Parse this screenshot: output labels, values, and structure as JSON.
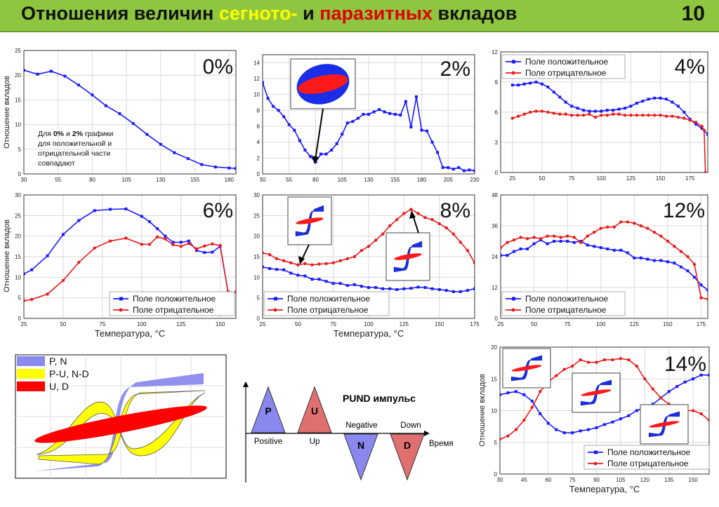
{
  "header": {
    "title_part1": "Отношения величин ",
    "title_part2": "сегното-",
    "title_part3": " и ",
    "title_part4": "паразитных",
    "title_part5": " вкладов",
    "page_number": "10",
    "colors": {
      "background": "#8ec63f",
      "accent1": "#ffff00",
      "accent2": "#e00000"
    }
  },
  "common": {
    "ylabel": "Отношение вкладов",
    "xlabel": "Температура, °C",
    "legend_pos": "Поле положительное",
    "legend_neg": "Поле отрицательное",
    "color_pos": "#1a1aff",
    "color_neg": "#e81c1c"
  },
  "note": {
    "lines": [
      [
        {
          "t": "Для "
        },
        {
          "t": "0%",
          "b": true
        },
        {
          "t": " и "
        },
        {
          "t": "2%",
          "b": true
        },
        {
          "t": " графики"
        }
      ],
      [
        {
          "t": "для положительной и"
        }
      ],
      [
        {
          "t": "отрицательной части"
        }
      ],
      [
        {
          "t": "совпадают"
        }
      ]
    ]
  },
  "chart_data": [
    {
      "type": "line",
      "title": "0%",
      "xlim": [
        30,
        185
      ],
      "ylim": [
        0,
        25
      ],
      "xticks": [
        30,
        55,
        80,
        105,
        130,
        155,
        180
      ],
      "yticks": [
        0,
        5,
        10,
        15,
        20,
        25
      ],
      "ylabel": "Отношение вкладов",
      "xlabel": "",
      "legend": false,
      "series": [
        {
          "name": "Поле положительное",
          "color": "pos",
          "x": [
            30,
            40,
            50,
            60,
            70,
            80,
            90,
            100,
            110,
            120,
            130,
            140,
            150,
            160,
            170,
            180,
            185
          ],
          "y": [
            21,
            20.2,
            20.8,
            19.8,
            18,
            16,
            13.8,
            12.2,
            10.2,
            8,
            6,
            4.3,
            3.1,
            1.9,
            1.4,
            1.2,
            1.1
          ]
        }
      ]
    },
    {
      "type": "line",
      "title": "2%",
      "xlim": [
        30,
        230
      ],
      "ylim": [
        0,
        15
      ],
      "xticks": [
        30,
        55,
        80,
        105,
        130,
        155,
        180,
        205,
        230
      ],
      "yticks": [
        0,
        2,
        4,
        6,
        8,
        10,
        12,
        14
      ],
      "ylabel": "",
      "xlabel": "",
      "legend": false,
      "series": [
        {
          "name": "Поле положительное",
          "color": "pos",
          "x": [
            30,
            35,
            40,
            45,
            50,
            55,
            60,
            65,
            70,
            75,
            80,
            85,
            90,
            95,
            100,
            105,
            110,
            115,
            120,
            125,
            130,
            135,
            140,
            145,
            150,
            155,
            160,
            165,
            170,
            175,
            180,
            185,
            190,
            195,
            200,
            205,
            210,
            215,
            220,
            225,
            230
          ],
          "y": [
            11.5,
            9.5,
            8.5,
            8,
            7.2,
            6.2,
            5.5,
            4.2,
            3,
            2.2,
            1.5,
            2.5,
            2.5,
            3,
            3.8,
            5,
            6.4,
            6.6,
            7,
            7.5,
            7.5,
            7.8,
            8.1,
            7.8,
            7.6,
            7.5,
            7.4,
            9.1,
            5.9,
            9.7,
            5.5,
            5.4,
            4,
            2.7,
            0.8,
            0.8,
            0.6,
            0.8,
            0.4,
            0.5,
            0.4
          ]
        }
      ]
    },
    {
      "type": "line",
      "title": "4%",
      "xlim": [
        15,
        190
      ],
      "ylim": [
        0,
        12
      ],
      "xticks": [
        25,
        50,
        75,
        100,
        125,
        150,
        175
      ],
      "yticks": [
        0,
        3,
        6,
        9,
        12
      ],
      "ylabel": "",
      "xlabel": "",
      "legend": true,
      "series": [
        {
          "name": "Поле положительное",
          "color": "pos",
          "x": [
            25,
            30,
            35,
            40,
            45,
            50,
            55,
            60,
            65,
            70,
            75,
            80,
            85,
            90,
            95,
            100,
            105,
            110,
            115,
            120,
            125,
            130,
            135,
            140,
            145,
            150,
            155,
            160,
            165,
            170,
            175,
            180,
            185,
            190
          ],
          "y": [
            8.7,
            8.7,
            8.8,
            8.9,
            9,
            8.8,
            8.5,
            8,
            7.5,
            7,
            6.6,
            6.4,
            6.2,
            6.1,
            6.1,
            6.1,
            6.2,
            6.2,
            6.3,
            6.4,
            6.6,
            6.9,
            7.1,
            7.3,
            7.4,
            7.4,
            7.3,
            7,
            6.6,
            6,
            5.3,
            4.8,
            4.4,
            3.8
          ]
        },
        {
          "name": "Поле отрицательное",
          "color": "neg",
          "x": [
            25,
            30,
            35,
            40,
            45,
            50,
            55,
            60,
            65,
            70,
            75,
            80,
            85,
            90,
            95,
            100,
            105,
            110,
            115,
            120,
            125,
            130,
            135,
            140,
            145,
            150,
            155,
            160,
            165,
            170,
            175,
            180,
            185,
            187,
            188
          ],
          "y": [
            5.4,
            5.6,
            5.8,
            6,
            6.1,
            6.1,
            6,
            5.9,
            5.8,
            5.8,
            5.7,
            5.7,
            5.7,
            5.8,
            5.5,
            5.7,
            5.7,
            5.8,
            5.8,
            5.7,
            5.7,
            5.7,
            5.7,
            5.7,
            5.7,
            5.7,
            5.6,
            5.6,
            5.5,
            5.4,
            5.2,
            5,
            4.6,
            4.2,
            0
          ]
        }
      ]
    },
    {
      "type": "line",
      "title": "6%",
      "xlim": [
        25,
        160
      ],
      "ylim": [
        0,
        30
      ],
      "xticks": [
        25,
        50,
        75,
        100,
        125,
        150
      ],
      "yticks": [
        0,
        5,
        10,
        15,
        20,
        25,
        30
      ],
      "ylabel": "Отношение вкладов",
      "xlabel": "Температура, °C",
      "legend": true,
      "series": [
        {
          "name": "Поле положительное",
          "color": "pos",
          "x": [
            25,
            30,
            40,
            50,
            60,
            70,
            80,
            90,
            100,
            105,
            110,
            115,
            120,
            125,
            130,
            135,
            140,
            145,
            150,
            155,
            160
          ],
          "y": [
            10.8,
            11.8,
            15.2,
            20.4,
            23.8,
            26.2,
            26.5,
            26.6,
            24.8,
            23.5,
            21.8,
            20,
            18.5,
            18.5,
            18.8,
            16.5,
            16,
            16.1,
            17.5,
            6.4,
            6.4
          ]
        },
        {
          "name": "Поле отрицательное",
          "color": "neg",
          "x": [
            25,
            30,
            40,
            50,
            60,
            70,
            80,
            90,
            100,
            105,
            110,
            115,
            120,
            125,
            130,
            135,
            140,
            145,
            150,
            155,
            160
          ],
          "y": [
            4.3,
            4.6,
            5.9,
            9.2,
            13.6,
            17.1,
            18.8,
            19.5,
            18,
            18,
            19.8,
            19.3,
            17.9,
            17.5,
            18.2,
            16.9,
            17.6,
            18.1,
            17.7,
            6.5,
            6.4
          ]
        }
      ]
    },
    {
      "type": "line",
      "title": "8%",
      "xlim": [
        25,
        175
      ],
      "ylim": [
        0,
        30
      ],
      "xticks": [
        25,
        50,
        75,
        100,
        125,
        150,
        175
      ],
      "yticks": [
        0,
        5,
        10,
        15,
        20,
        25,
        30
      ],
      "ylabel": "",
      "xlabel": "Температура, °C",
      "legend": true,
      "series": [
        {
          "name": "Поле положительное",
          "color": "pos",
          "x": [
            25,
            30,
            35,
            40,
            45,
            50,
            55,
            60,
            65,
            70,
            75,
            80,
            85,
            90,
            95,
            100,
            105,
            110,
            115,
            120,
            125,
            130,
            135,
            140,
            145,
            150,
            155,
            160,
            165,
            170,
            175
          ],
          "y": [
            12.5,
            12.1,
            11.9,
            11.8,
            11,
            10.5,
            10.3,
            9.5,
            9.5,
            9,
            8.5,
            8.5,
            8,
            8.2,
            7.8,
            7.5,
            7.5,
            7.2,
            7.2,
            7,
            7.2,
            7.3,
            7.6,
            7.5,
            7.2,
            7,
            6.8,
            6.5,
            6.5,
            6.8,
            7.2
          ]
        },
        {
          "name": "Поле отрицательное",
          "color": "neg",
          "x": [
            25,
            30,
            35,
            40,
            45,
            50,
            55,
            60,
            65,
            70,
            75,
            80,
            85,
            90,
            95,
            100,
            105,
            110,
            115,
            120,
            125,
            130,
            135,
            140,
            145,
            150,
            155,
            160,
            165,
            170,
            175
          ],
          "y": [
            15.9,
            15.5,
            14.5,
            14,
            13.5,
            13,
            13.3,
            13,
            13.2,
            13.3,
            13.5,
            14,
            14.5,
            15,
            16.5,
            17.5,
            19,
            20.5,
            22.5,
            24,
            25.5,
            26.5,
            25.5,
            24.5,
            24,
            23,
            22,
            20.5,
            18.5,
            16.5,
            13.5
          ]
        }
      ]
    },
    {
      "type": "line",
      "title": "12%",
      "xlim": [
        25,
        180
      ],
      "ylim": [
        0,
        48
      ],
      "xticks": [
        25,
        50,
        75,
        100,
        125,
        150,
        175
      ],
      "yticks": [
        0,
        12,
        24,
        36,
        48
      ],
      "ylabel": "",
      "xlabel": "",
      "legend": true,
      "series": [
        {
          "name": "Поле положительное",
          "color": "pos",
          "x": [
            25,
            30,
            35,
            40,
            45,
            50,
            55,
            60,
            65,
            70,
            75,
            80,
            85,
            90,
            95,
            100,
            105,
            110,
            115,
            120,
            125,
            130,
            135,
            140,
            145,
            150,
            155,
            160,
            165,
            170,
            175,
            180
          ],
          "y": [
            24.5,
            24.5,
            26,
            27,
            27,
            29,
            30.5,
            29,
            30,
            30,
            30,
            29.5,
            30,
            28.5,
            28,
            27.5,
            27,
            26.5,
            26.5,
            25.5,
            23.5,
            23.5,
            23,
            22.5,
            22.5,
            22,
            21.5,
            20,
            18.5,
            16,
            13,
            11
          ]
        },
        {
          "name": "Поле отрицательное",
          "color": "neg",
          "x": [
            25,
            30,
            35,
            40,
            45,
            50,
            55,
            60,
            65,
            70,
            75,
            80,
            85,
            90,
            95,
            100,
            105,
            110,
            115,
            120,
            125,
            130,
            135,
            140,
            145,
            150,
            155,
            160,
            165,
            170,
            175,
            180
          ],
          "y": [
            27.5,
            29.5,
            30.5,
            31.5,
            31,
            31.5,
            31,
            32,
            32,
            31.5,
            32,
            31.5,
            29.5,
            32,
            33.5,
            35,
            35.5,
            35.5,
            37.5,
            37.5,
            37,
            36,
            35,
            33.5,
            32,
            30,
            28,
            26,
            24,
            21,
            8,
            7.5
          ]
        }
      ]
    },
    {
      "type": "line",
      "title": "14%",
      "xlim": [
        30,
        160
      ],
      "ylim": [
        0,
        20
      ],
      "xticks": [
        30,
        45,
        60,
        75,
        90,
        105,
        120,
        135,
        150
      ],
      "yticks": [
        0,
        5,
        10,
        15,
        20
      ],
      "ylabel": "Отношение вкладов",
      "xlabel": "Температура, °C",
      "legend": true,
      "series": [
        {
          "name": "Поле положительное",
          "color": "pos",
          "x": [
            30,
            35,
            40,
            45,
            50,
            55,
            60,
            65,
            70,
            75,
            80,
            85,
            90,
            95,
            100,
            105,
            110,
            115,
            120,
            125,
            130,
            135,
            140,
            145,
            150,
            155,
            160
          ],
          "y": [
            12.5,
            12.8,
            13,
            12.5,
            11.5,
            9.5,
            8,
            7,
            6.5,
            6.5,
            6.8,
            7,
            7.3,
            7.8,
            8.2,
            8.7,
            9.2,
            10,
            10.5,
            11,
            12,
            13,
            13.8,
            14.5,
            15,
            15.6,
            15.6
          ]
        },
        {
          "name": "Поле отрицательное",
          "color": "neg",
          "x": [
            30,
            35,
            40,
            45,
            50,
            55,
            60,
            65,
            70,
            75,
            80,
            85,
            90,
            95,
            100,
            105,
            110,
            115,
            120,
            125,
            130,
            135,
            140,
            145,
            150,
            155,
            160
          ],
          "y": [
            5.5,
            6,
            7,
            8.5,
            10.5,
            13,
            14.5,
            15.5,
            16.5,
            17,
            18,
            17.6,
            17.6,
            18,
            18,
            18.2,
            18,
            17,
            15,
            13.4,
            12,
            11,
            10.5,
            10,
            10,
            9.5,
            8.5
          ]
        }
      ]
    }
  ],
  "pund": {
    "title": "PUND импульс",
    "p": "P",
    "u": "U",
    "n": "N",
    "d": "D",
    "positive": "Positive",
    "up": "Up",
    "negative": "Negative",
    "down": "Down",
    "time": "Время",
    "colors": {
      "pos": "#8888ee",
      "neg": "#e07070"
    }
  },
  "loops_legend": {
    "items": [
      "P, N",
      "P-U, N-D",
      "U, D"
    ],
    "colors": [
      "#8a8aee",
      "#ffff00",
      "#ff0000"
    ]
  }
}
